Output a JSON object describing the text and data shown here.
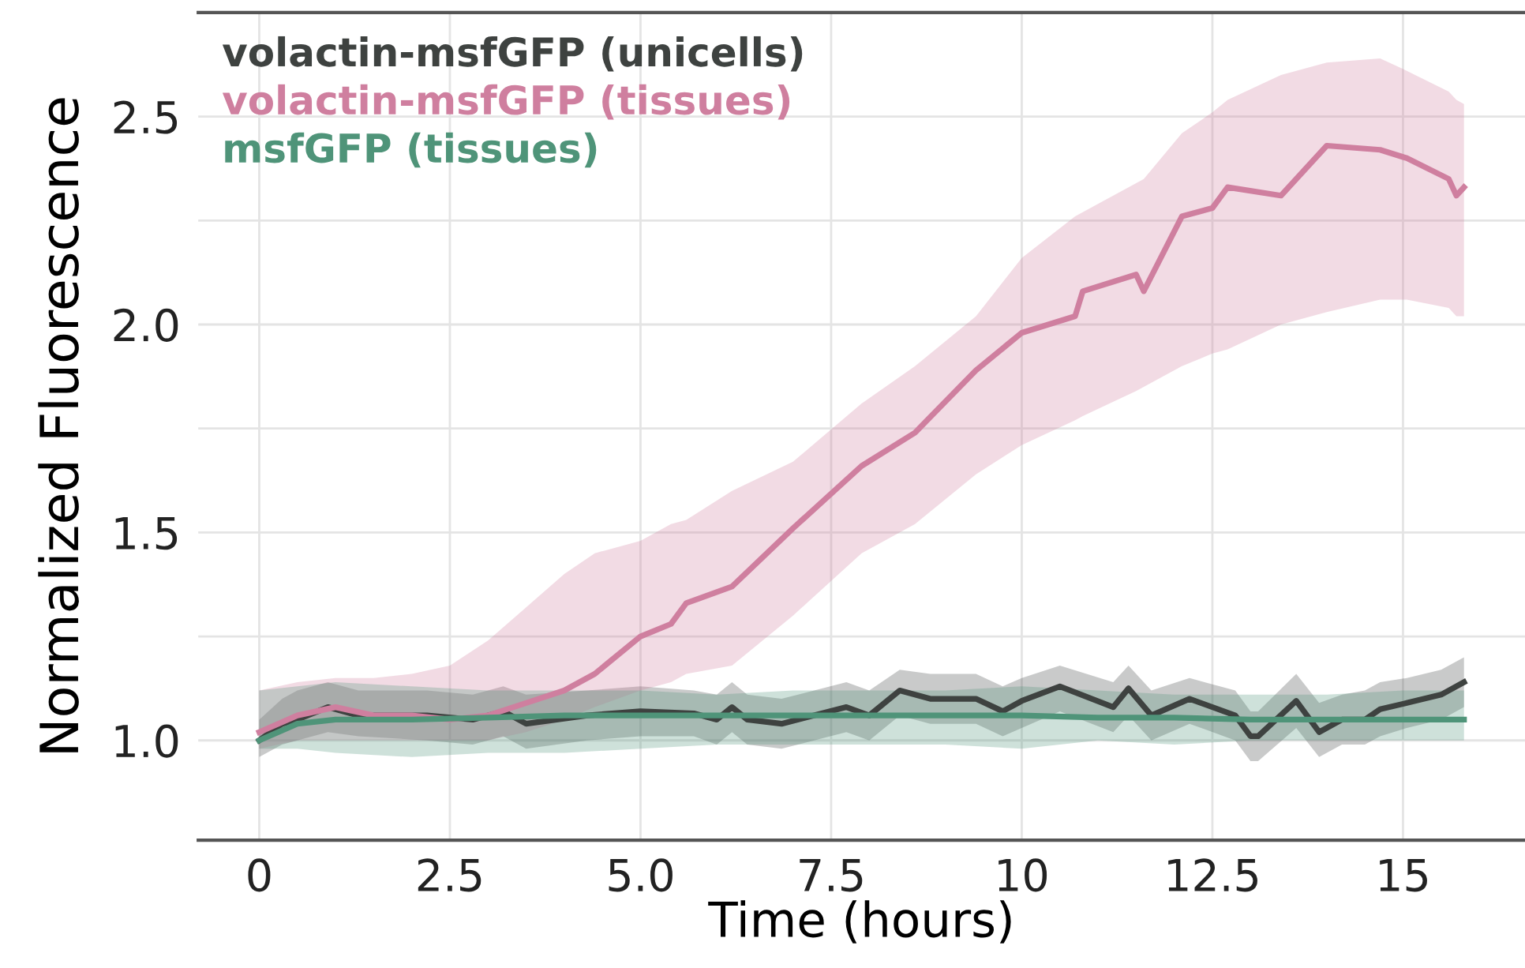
{
  "chart_data": {
    "type": "line",
    "xlabel": "Time (hours)",
    "ylabel": "Normalized Fluorescence",
    "xlim": [
      -0.8,
      16.6
    ],
    "ylim": [
      0.76,
      2.75
    ],
    "xticks": [
      0,
      2.5,
      {
        "value": 5,
        "label": "5.0"
      },
      7.5,
      10,
      12.5,
      15
    ],
    "yticks": [
      {
        "value": 1,
        "label": "1.0"
      },
      {
        "value": 1.25,
        "label": null
      },
      1.5,
      {
        "value": 1.75,
        "label": null
      },
      {
        "value": 2,
        "label": "2.0"
      },
      {
        "value": 2.25,
        "label": null
      },
      2.5
    ],
    "grid": true,
    "legend": "top left",
    "marker": "none",
    "line_style": "solid",
    "series": [
      {
        "name": "volactin-msfGFP (unicells)",
        "color": "#3e4240",
        "x": [
          0,
          0.3,
          0.5,
          0.9,
          1.3,
          2.2,
          2.8,
          3.2,
          3.5,
          4.3,
          5.0,
          5.7,
          6.0,
          6.2,
          6.4,
          6.85,
          7.7,
          8.0,
          8.4,
          8.8,
          9.4,
          9.75,
          10.0,
          10.5,
          11.2,
          11.4,
          11.7,
          12.2,
          12.8,
          13.0,
          13.1,
          13.6,
          13.9,
          14.2,
          14.5,
          14.7,
          15.05,
          15.5,
          15.8
        ],
        "values": [
          1.0,
          1.04,
          1.05,
          1.08,
          1.06,
          1.06,
          1.05,
          1.07,
          1.04,
          1.06,
          1.07,
          1.065,
          1.05,
          1.08,
          1.05,
          1.04,
          1.08,
          1.06,
          1.12,
          1.1,
          1.1,
          1.07,
          1.095,
          1.13,
          1.08,
          1.125,
          1.06,
          1.1,
          1.06,
          1.01,
          1.01,
          1.095,
          1.02,
          1.05,
          1.05,
          1.075,
          1.09,
          1.11,
          1.14
        ],
        "upper": [
          1.05,
          1.1,
          1.12,
          1.14,
          1.12,
          1.12,
          1.11,
          1.13,
          1.11,
          1.12,
          1.13,
          1.12,
          1.11,
          1.14,
          1.11,
          1.1,
          1.14,
          1.12,
          1.17,
          1.16,
          1.16,
          1.13,
          1.15,
          1.18,
          1.14,
          1.18,
          1.12,
          1.15,
          1.12,
          1.07,
          1.07,
          1.16,
          1.09,
          1.11,
          1.12,
          1.14,
          1.15,
          1.17,
          1.2
        ],
        "lower": [
          0.96,
          0.99,
          1.0,
          1.02,
          1.01,
          1.0,
          0.99,
          1.01,
          0.98,
          1.0,
          1.01,
          1.01,
          0.99,
          1.02,
          0.99,
          0.98,
          1.02,
          1.0,
          1.06,
          1.04,
          1.04,
          1.01,
          1.03,
          1.07,
          1.02,
          1.06,
          1.0,
          1.04,
          1.0,
          0.95,
          0.95,
          1.03,
          0.96,
          0.99,
          0.99,
          1.01,
          1.03,
          1.05,
          1.08
        ]
      },
      {
        "name": "volactin-msfGFP (tissues)",
        "color": "#cf7f9f",
        "x": [
          0,
          0.5,
          1,
          1.5,
          2,
          2.5,
          3,
          3.5,
          4,
          4.4,
          5,
          5.4,
          5.6,
          6.2,
          7,
          7.9,
          8.6,
          9.4,
          10,
          10.7,
          10.8,
          11.5,
          11.6,
          12.1,
          12.5,
          12.7,
          13.4,
          14,
          14.7,
          15.05,
          15.6,
          15.7,
          15.8
        ],
        "values": [
          1.02,
          1.06,
          1.08,
          1.06,
          1.06,
          1.05,
          1.06,
          1.09,
          1.12,
          1.16,
          1.25,
          1.28,
          1.33,
          1.37,
          1.51,
          1.66,
          1.74,
          1.89,
          1.98,
          2.02,
          2.08,
          2.12,
          2.08,
          2.26,
          2.28,
          2.33,
          2.31,
          2.43,
          2.42,
          2.4,
          2.35,
          2.31,
          2.33
        ],
        "upper": [
          1.12,
          1.14,
          1.15,
          1.15,
          1.16,
          1.18,
          1.24,
          1.32,
          1.4,
          1.45,
          1.48,
          1.52,
          1.53,
          1.6,
          1.67,
          1.81,
          1.9,
          2.02,
          2.16,
          2.26,
          2.27,
          2.34,
          2.35,
          2.46,
          2.51,
          2.54,
          2.6,
          2.63,
          2.64,
          2.61,
          2.56,
          2.54,
          2.53
        ],
        "lower": [
          0.98,
          1.0,
          1.0,
          1.0,
          1.0,
          1.0,
          1.0,
          1.02,
          1.05,
          1.08,
          1.12,
          1.14,
          1.16,
          1.18,
          1.3,
          1.45,
          1.52,
          1.64,
          1.71,
          1.77,
          1.78,
          1.84,
          1.85,
          1.9,
          1.93,
          1.94,
          2.0,
          2.03,
          2.06,
          2.06,
          2.04,
          2.02,
          2.02
        ]
      },
      {
        "name": "msfGFP (tissues)",
        "color": "#4f9479",
        "x": [
          0,
          0.5,
          1,
          2,
          3,
          4,
          5,
          6,
          7,
          8,
          9,
          10,
          11,
          12,
          13,
          14,
          15,
          15.8
        ],
        "values": [
          1.0,
          1.04,
          1.05,
          1.05,
          1.055,
          1.06,
          1.06,
          1.06,
          1.06,
          1.06,
          1.06,
          1.06,
          1.055,
          1.055,
          1.05,
          1.05,
          1.05,
          1.05
        ],
        "upper": [
          1.12,
          1.13,
          1.14,
          1.13,
          1.12,
          1.12,
          1.12,
          1.11,
          1.12,
          1.12,
          1.12,
          1.13,
          1.12,
          1.11,
          1.11,
          1.11,
          1.12,
          1.12
        ],
        "lower": [
          0.98,
          0.98,
          0.97,
          0.96,
          0.97,
          0.97,
          0.98,
          0.99,
          0.99,
          0.99,
          0.99,
          0.98,
          1.0,
          0.99,
          1.0,
          1.0,
          1.0,
          1.0
        ]
      }
    ]
  }
}
